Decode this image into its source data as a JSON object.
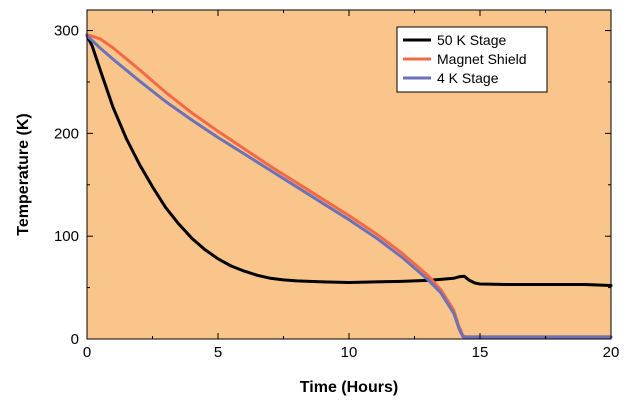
{
  "chart_data": {
    "type": "line",
    "title": "",
    "xlabel": "Time (Hours)",
    "ylabel": "Temperature (K)",
    "xlim": [
      0,
      20
    ],
    "ylim": [
      0,
      320
    ],
    "xticks": [
      0,
      5,
      10,
      15,
      20
    ],
    "yticks": [
      0,
      100,
      200,
      300
    ],
    "grid": false,
    "legend_position": "top-right",
    "background_color": "#fac58a",
    "series": [
      {
        "name": "50 K Stage",
        "color": "#000000",
        "x": [
          0,
          0.2,
          0.5,
          1,
          1.5,
          2,
          2.5,
          3,
          3.5,
          4,
          4.5,
          5,
          5.5,
          6,
          6.5,
          7,
          7.5,
          8,
          9,
          10,
          11,
          12,
          13,
          13.5,
          14,
          14.2,
          14.4,
          14.6,
          14.8,
          15,
          16,
          17,
          18,
          19,
          20
        ],
        "y": [
          295,
          285,
          262,
          225,
          195,
          170,
          148,
          128,
          112,
          98,
          87,
          78,
          71,
          66,
          62,
          59,
          57.5,
          56.5,
          55.5,
          55,
          55.5,
          56,
          57,
          58,
          59,
          60.5,
          61,
          57,
          54.5,
          53.5,
          53,
          53,
          53,
          53,
          52
        ]
      },
      {
        "name": "Magnet Shield",
        "color": "#f26a45",
        "x": [
          0,
          0.5,
          1,
          2,
          3,
          4,
          5,
          6,
          7,
          8,
          9,
          10,
          11,
          12,
          13,
          13.5,
          14,
          14.2,
          14.35,
          14.5,
          15,
          16,
          17,
          18,
          19,
          20
        ],
        "y": [
          296,
          292,
          283,
          262,
          240,
          220,
          202,
          185,
          168,
          152,
          136,
          120,
          103,
          84,
          62,
          48,
          28,
          12,
          3,
          2,
          2,
          2,
          2,
          2,
          2,
          2
        ]
      },
      {
        "name": "4 K Stage",
        "color": "#6b72b9",
        "x": [
          0,
          0.5,
          1,
          2,
          3,
          4,
          5,
          6,
          7,
          8,
          9,
          10,
          11,
          12,
          13,
          13.5,
          14,
          14.2,
          14.35,
          14.5,
          15,
          16,
          17,
          18,
          19,
          20
        ],
        "y": [
          295,
          283,
          272,
          251,
          231,
          213,
          196,
          180,
          164,
          148,
          132,
          116,
          99,
          80,
          58,
          45,
          25,
          10,
          2,
          2,
          2,
          2,
          2,
          2,
          2,
          2
        ]
      }
    ]
  }
}
